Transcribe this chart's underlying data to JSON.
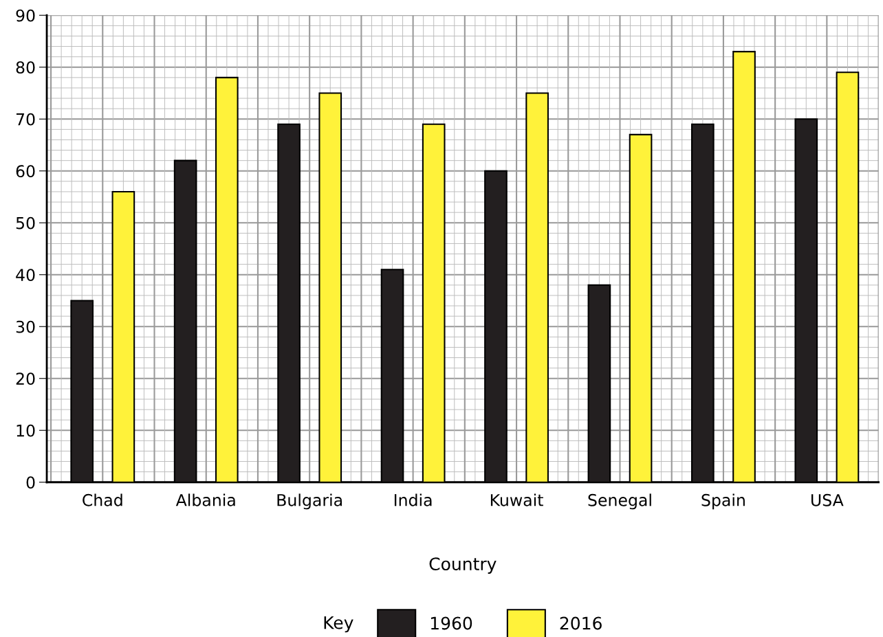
{
  "chart_data": {
    "type": "bar",
    "xlabel": "Country",
    "legend_title": "Key",
    "legend": "bottom",
    "categories": [
      "Chad",
      "Albania",
      "Bulgaria",
      "India",
      "Kuwait",
      "Senegal",
      "Spain",
      "USA"
    ],
    "series": [
      {
        "name": "1960",
        "color": "#231f20",
        "values": [
          35,
          62,
          69,
          41,
          60,
          38,
          69,
          70
        ]
      },
      {
        "name": "2016",
        "color": "#fff23a",
        "values": [
          56,
          78,
          75,
          69,
          75,
          67,
          83,
          79
        ]
      }
    ],
    "ylim": [
      0,
      90
    ],
    "yticks": [
      0,
      10,
      20,
      30,
      40,
      50,
      60,
      70,
      80,
      90
    ],
    "grid": true
  }
}
